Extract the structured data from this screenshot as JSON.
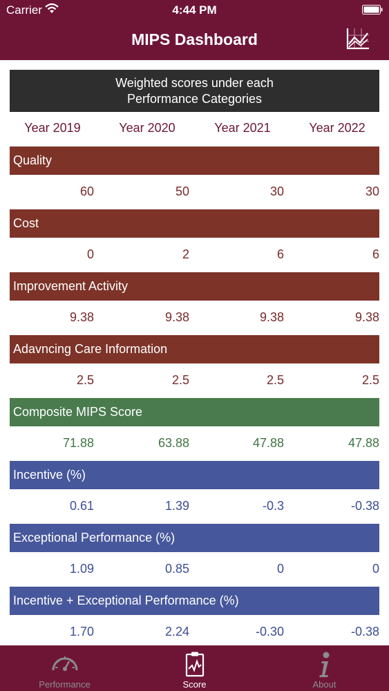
{
  "status": {
    "carrier": "Carrier",
    "time": "4:44 PM"
  },
  "header": {
    "title": "MIPS Dashboard"
  },
  "subtitle": {
    "line1": "Weighted scores under each",
    "line2": "Performance Categories"
  },
  "years": [
    "Year 2019",
    "Year 2020",
    "Year 2021",
    "Year 2022"
  ],
  "categories": [
    {
      "name": "Quality",
      "values": [
        "60",
        "50",
        "30",
        "30"
      ]
    },
    {
      "name": "Cost",
      "values": [
        "0",
        "2",
        "6",
        "6"
      ]
    },
    {
      "name": "Improvement Activity",
      "values": [
        "9.38",
        "9.38",
        "9.38",
        "9.38"
      ]
    },
    {
      "name": "Adavncing Care Information",
      "values": [
        "2.5",
        "2.5",
        "2.5",
        "2.5"
      ]
    },
    {
      "name": "Composite MIPS Score",
      "values": [
        "71.88",
        "63.88",
        "47.88",
        "47.88"
      ]
    },
    {
      "name": "Incentive (%)",
      "values": [
        "0.61",
        "1.39",
        "-0.3",
        "-0.38"
      ]
    },
    {
      "name": "Exceptional Performance (%)",
      "values": [
        "1.09",
        "0.85",
        "0",
        "0"
      ]
    },
    {
      "name": "Incentive + Exceptional Performance (%)",
      "values": [
        "1.70",
        "2.24",
        "-0.30",
        "-0.38"
      ]
    }
  ],
  "tabs": [
    {
      "label": "Performance",
      "icon": "speedometer-icon",
      "active": false
    },
    {
      "label": "Score",
      "icon": "clipboard-chart-icon",
      "active": true
    },
    {
      "label": "About",
      "icon": "info-icon",
      "active": false
    }
  ],
  "colors": {
    "header": "#6e1535",
    "category_brown": "#7d3328",
    "category_green": "#4a7b4e",
    "category_blue": "#47579b"
  }
}
